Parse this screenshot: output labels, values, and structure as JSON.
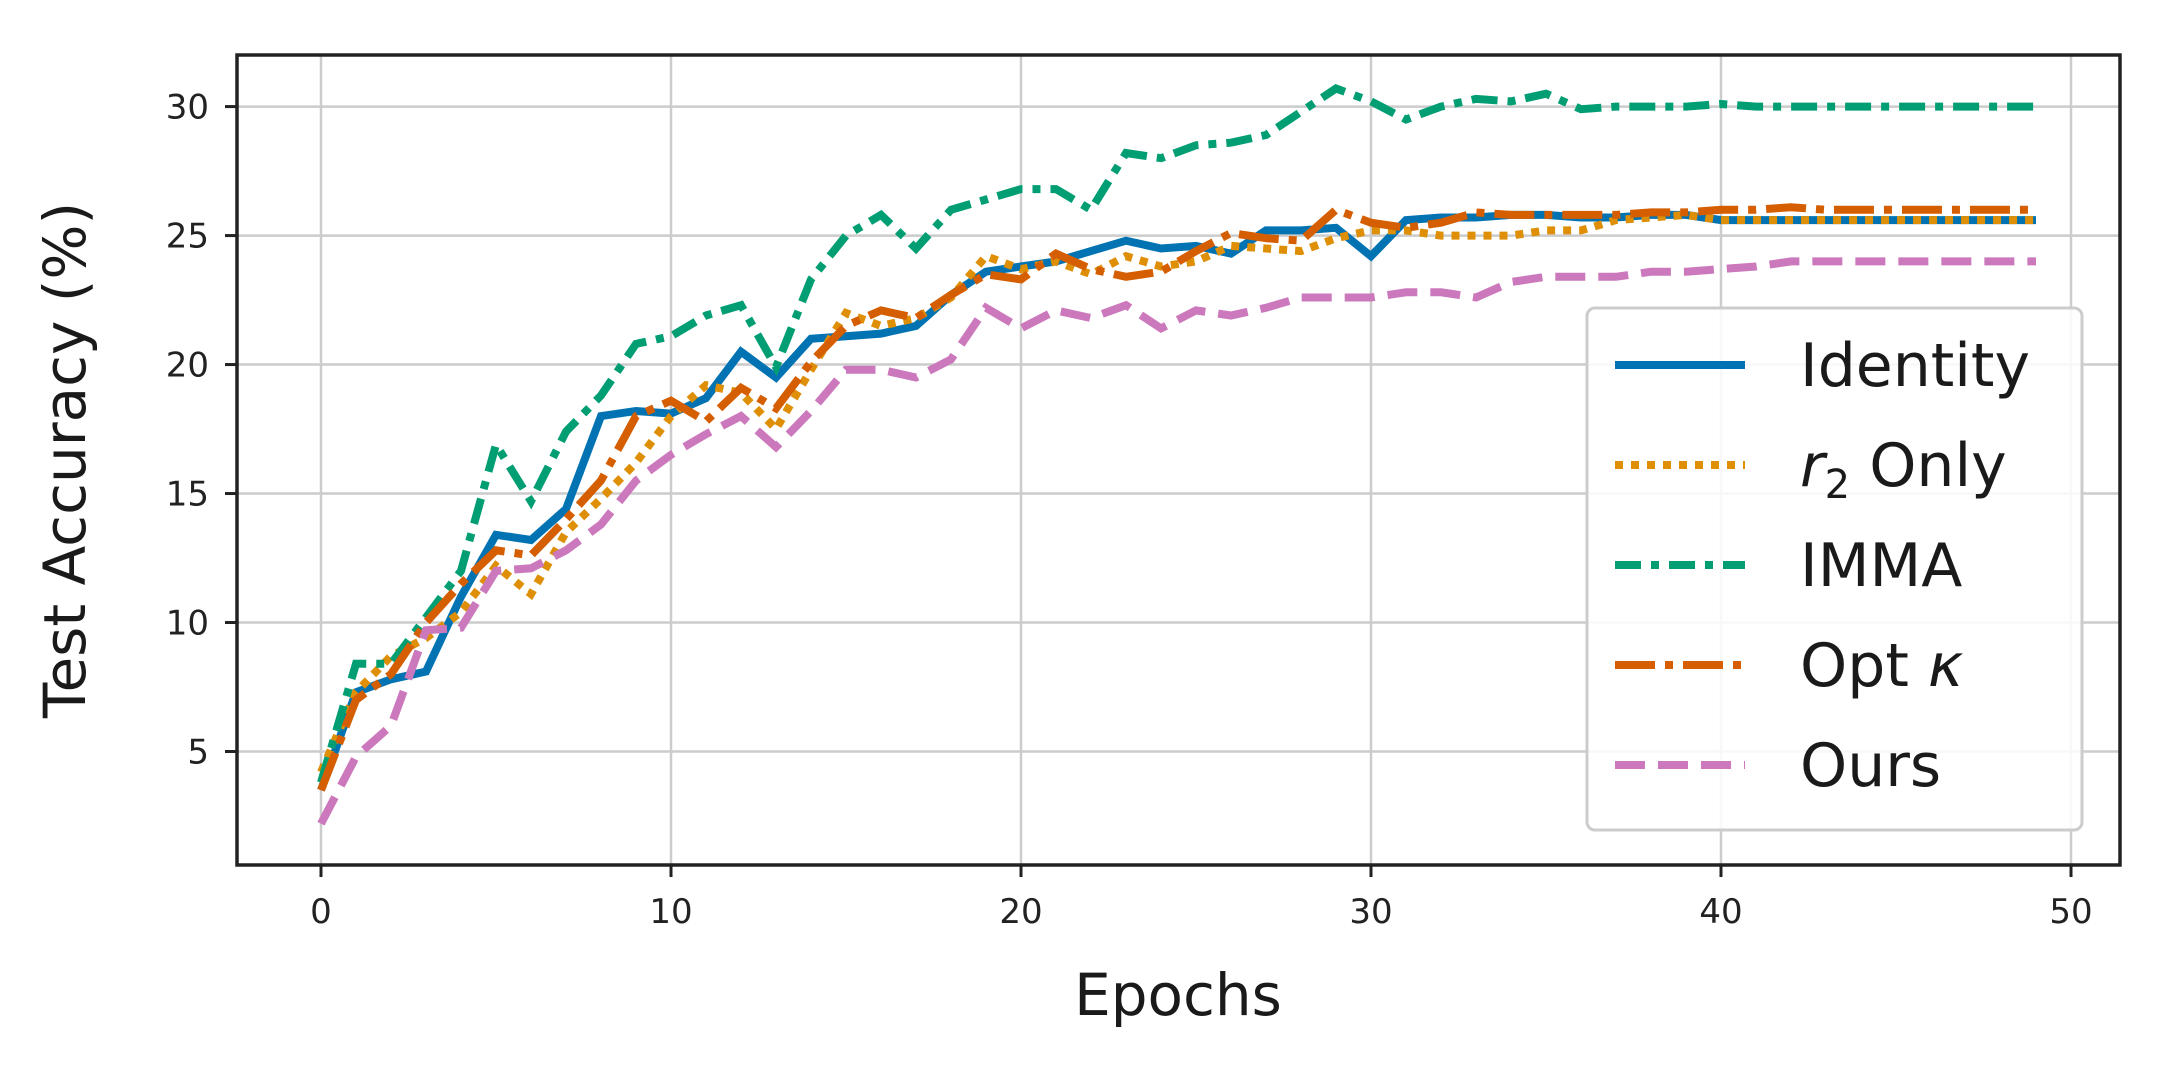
{
  "chart_data": {
    "type": "line",
    "title": "",
    "xlabel": "Epochs",
    "ylabel": "Test Accuracy (%)",
    "xlim": [
      -2.4,
      51.4
    ],
    "ylim": [
      0.6,
      32.0
    ],
    "xticks": [
      "0",
      "10",
      "20",
      "30",
      "40",
      "50"
    ],
    "yticks": [
      "5",
      "10",
      "15",
      "20",
      "25",
      "30"
    ],
    "grid": true,
    "legend_position": "lower-right",
    "series": [
      {
        "name": "Identity",
        "color": "#0173b2",
        "style": "solid",
        "values": [
          3.5,
          7.3,
          7.8,
          8.1,
          11.0,
          13.4,
          13.2,
          14.4,
          18.0,
          18.2,
          18.1,
          18.7,
          20.5,
          19.5,
          21.0,
          21.1,
          21.2,
          21.5,
          22.7,
          23.6,
          23.8,
          24.0,
          24.4,
          24.8,
          24.5,
          24.6,
          24.3,
          25.2,
          25.2,
          25.3,
          24.2,
          25.6,
          25.7,
          25.7,
          25.8,
          25.8,
          25.7,
          25.7,
          25.8,
          25.8,
          25.6,
          25.6,
          25.6,
          25.6,
          25.6,
          25.6,
          25.6,
          25.6,
          25.6,
          25.6
        ]
      },
      {
        "name": "r2 Only",
        "color": "#de8f05",
        "style": "dotted",
        "values": [
          4.2,
          7.3,
          8.7,
          9.4,
          10.4,
          12.2,
          11.1,
          13.5,
          14.8,
          16.2,
          18.0,
          19.2,
          18.9,
          17.5,
          19.8,
          22.0,
          21.5,
          21.8,
          22.6,
          24.2,
          23.7,
          24.0,
          23.5,
          24.2,
          23.8,
          24.0,
          24.6,
          24.5,
          24.4,
          24.9,
          25.2,
          25.2,
          25.0,
          25.0,
          25.0,
          25.2,
          25.2,
          25.6,
          25.7,
          25.8,
          25.6,
          25.6,
          25.6,
          25.6,
          25.6,
          25.6,
          25.6,
          25.6,
          25.6,
          25.6
        ]
      },
      {
        "name": "IMMA",
        "color": "#029e73",
        "style": "dashdot",
        "values": [
          3.8,
          8.4,
          8.4,
          10.2,
          12.0,
          16.9,
          14.7,
          17.4,
          18.8,
          20.8,
          21.1,
          21.9,
          22.3,
          19.9,
          23.3,
          25.0,
          25.8,
          24.5,
          26.0,
          26.4,
          26.8,
          26.8,
          26.0,
          28.2,
          28.0,
          28.5,
          28.6,
          28.9,
          29.8,
          30.7,
          30.2,
          29.5,
          30.0,
          30.3,
          30.2,
          30.5,
          29.9,
          30.0,
          30.0,
          30.0,
          30.1,
          30.0,
          30.0,
          30.0,
          30.0,
          30.0,
          30.0,
          30.0,
          30.0,
          30.0
        ]
      },
      {
        "name": "Opt κ",
        "color": "#d55e00",
        "style": "longdash",
        "values": [
          3.5,
          7.0,
          8.0,
          10.0,
          11.5,
          12.8,
          12.6,
          14.0,
          15.5,
          18.0,
          18.6,
          17.8,
          19.1,
          18.3,
          20.1,
          21.5,
          22.1,
          21.8,
          22.7,
          23.5,
          23.3,
          24.3,
          23.7,
          23.4,
          23.6,
          24.4,
          25.1,
          24.9,
          24.8,
          26.0,
          25.5,
          25.3,
          25.5,
          25.9,
          25.8,
          25.8,
          25.8,
          25.8,
          25.9,
          25.9,
          26.0,
          26.0,
          26.1,
          26.0,
          26.0,
          26.0,
          26.0,
          26.0,
          26.0,
          26.0
        ]
      },
      {
        "name": "Ours",
        "color": "#cc78bc",
        "style": "dashed",
        "values": [
          2.2,
          4.8,
          6.0,
          9.7,
          9.8,
          12.0,
          12.1,
          12.8,
          13.8,
          15.5,
          16.5,
          17.3,
          18.0,
          16.8,
          18.2,
          19.8,
          19.8,
          19.5,
          20.2,
          22.2,
          21.4,
          22.1,
          21.8,
          22.3,
          21.4,
          22.1,
          21.9,
          22.2,
          22.6,
          22.6,
          22.6,
          22.8,
          22.8,
          22.6,
          23.2,
          23.4,
          23.4,
          23.4,
          23.6,
          23.6,
          23.7,
          23.8,
          24.0,
          24.0,
          24.0,
          24.0,
          24.0,
          24.0,
          24.0,
          24.0
        ]
      }
    ]
  }
}
